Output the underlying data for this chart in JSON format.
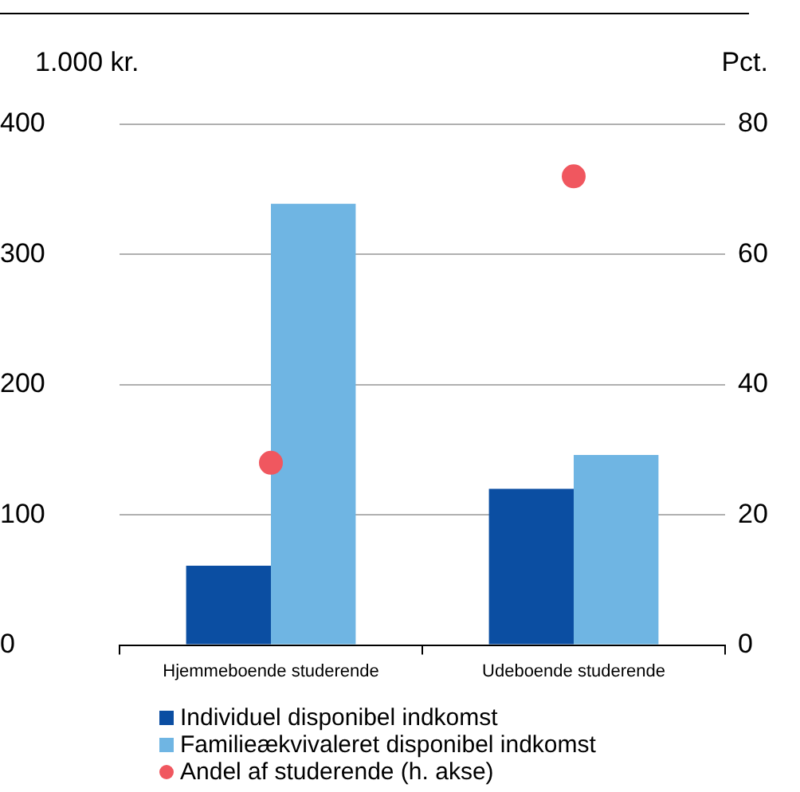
{
  "chart_data": {
    "type": "bar",
    "ylabel": "1.000 kr.",
    "y2label": "Pct.",
    "categories": [
      "Hjemmeboende studerende",
      "Udeboende studerende"
    ],
    "series": [
      {
        "name": "Individuel disponibel indkomst",
        "color": "#0b4ea2",
        "values": [
          61,
          120
        ]
      },
      {
        "name": "Familieækvivaleret disponibel indkomst",
        "color": "#6fb5e3",
        "values": [
          339,
          146
        ]
      },
      {
        "name": "Andel af studerende (h. akse)",
        "type": "scatter",
        "axis": "y2",
        "color": "#f0575f",
        "x": [
          "Hjemmeboende studerende",
          "Udeboende studerende"
        ],
        "values": [
          28,
          72
        ],
        "marker": "circle"
      }
    ],
    "ylim": [
      0,
      400
    ],
    "yticks": [
      0,
      100,
      200,
      300,
      400
    ],
    "y2lim": [
      0,
      80
    ],
    "y2ticks": [
      0,
      20,
      40,
      60,
      80
    ],
    "grid": "y",
    "legend": "bottom"
  }
}
